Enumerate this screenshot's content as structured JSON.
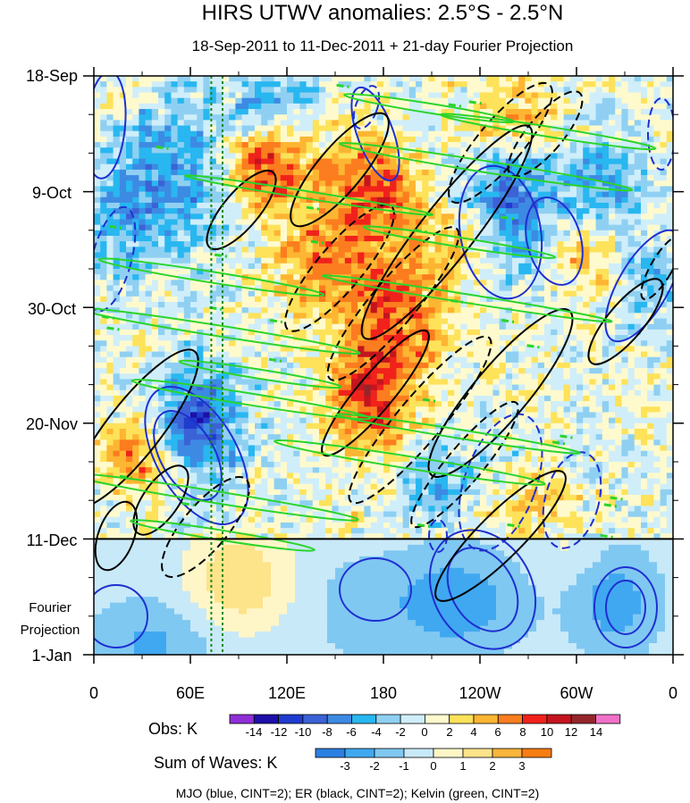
{
  "chart_data": {
    "type": "heatmap",
    "title": "HIRS UTWV anomalies: 2.5°S - 2.5°N",
    "subtitle": "18-Sep-2011 to 11-Dec-2011 + 21-day Fourier Projection",
    "x_ticks": [
      {
        "lon": 0,
        "label": "0"
      },
      {
        "lon": 60,
        "label": "60E"
      },
      {
        "lon": 120,
        "label": "120E"
      },
      {
        "lon": 180,
        "label": "180"
      },
      {
        "lon": 240,
        "label": "120W"
      },
      {
        "lon": 300,
        "label": "60W"
      },
      {
        "lon": 360,
        "label": "0"
      }
    ],
    "x_range": [
      0,
      360
    ],
    "y_ticks": [
      {
        "day": 0,
        "label": "18-Sep"
      },
      {
        "day": 21,
        "label": "9-Oct"
      },
      {
        "day": 42,
        "label": "30-Oct"
      },
      {
        "day": 63,
        "label": "20-Nov"
      },
      {
        "day": 84,
        "label": "11-Dec"
      },
      {
        "day": 105,
        "label": "1-Jan"
      }
    ],
    "y_range_days": [
      0,
      105
    ],
    "observation_end_day": 84,
    "projection_label_line1": "Fourier",
    "projection_label_line2": "Projection",
    "reference_longitudes": [
      73,
      80
    ],
    "obs_colorbar": {
      "title": "Obs: K",
      "levels": [
        -14,
        -12,
        -10,
        -8,
        -6,
        -4,
        -2,
        0,
        2,
        4,
        6,
        8,
        10,
        12,
        14
      ],
      "labels": [
        "-14",
        "-12",
        "-10",
        "-8",
        "-6",
        "-4",
        "-2",
        "0",
        "2",
        "4",
        "6",
        "8",
        "10",
        "12",
        "14"
      ],
      "colors": [
        "#8e2fd6",
        "#1e0fa8",
        "#1f3ccf",
        "#3b62d6",
        "#3d8ae3",
        "#28b7f0",
        "#8fd0f2",
        "#cfeefa",
        "#fffacd",
        "#fde25a",
        "#fdb532",
        "#fb7d1f",
        "#f0221b",
        "#c4151e",
        "#94262b",
        "#f171c9"
      ]
    },
    "wave_colorbar": {
      "title": "Sum of Waves: K",
      "levels": [
        -3,
        -2,
        -1,
        0,
        1,
        2,
        3
      ],
      "labels": [
        "-3",
        "-2",
        "-1",
        "0",
        "1",
        "2",
        "3"
      ],
      "colors": [
        "#2b7fe0",
        "#40a8f0",
        "#7fc8f2",
        "#c8e9f8",
        "#fff6c8",
        "#fde38a",
        "#fbb43c",
        "#f77c12"
      ]
    },
    "contours": [
      {
        "name": "MJO",
        "color": "#1f2fd0",
        "cint": 2
      },
      {
        "name": "ER",
        "color": "#000000",
        "cint": 2
      },
      {
        "name": "Kelvin",
        "color": "#2bd42b",
        "cint": 2
      }
    ],
    "footer": "MJO (blue, CINT=2); ER (black, CINT=2); Kelvin (green, CINT=2)"
  }
}
